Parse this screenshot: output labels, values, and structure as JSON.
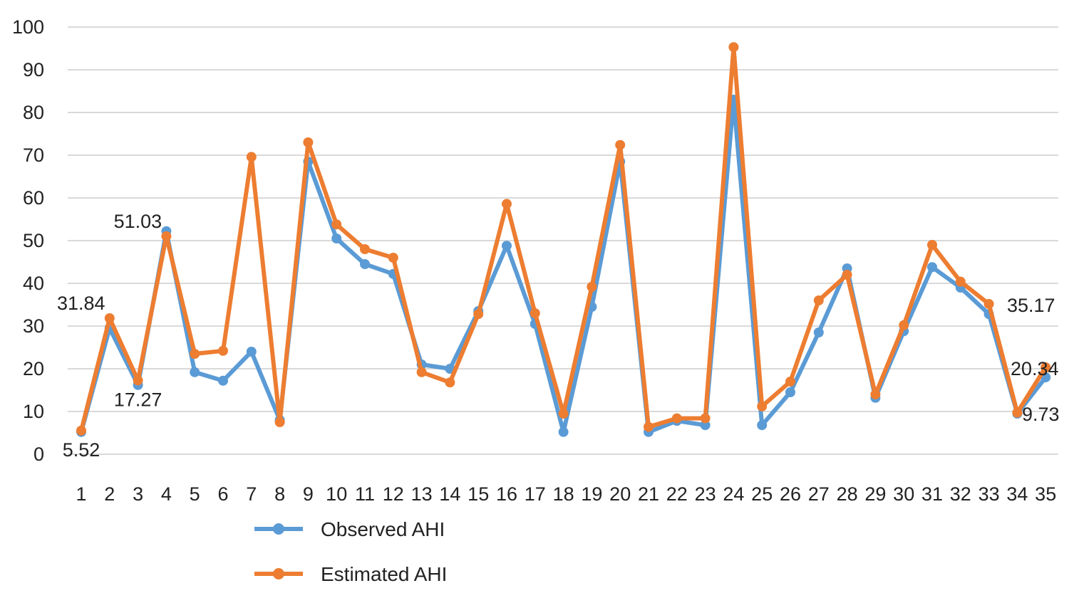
{
  "chart_data": {
    "type": "line",
    "categories": [
      "1",
      "2",
      "3",
      "4",
      "5",
      "6",
      "7",
      "8",
      "9",
      "10",
      "11",
      "12",
      "13",
      "14",
      "15",
      "16",
      "17",
      "18",
      "19",
      "20",
      "21",
      "22",
      "23",
      "24",
      "25",
      "26",
      "27",
      "28",
      "29",
      "30",
      "31",
      "32",
      "33",
      "34",
      "35"
    ],
    "series": [
      {
        "name": "Observed AHI",
        "color": "#5B9BD5",
        "values": [
          5.2,
          29.5,
          16.2,
          52.2,
          19.2,
          17.2,
          24.0,
          8.0,
          68.5,
          50.5,
          44.5,
          42.2,
          21.0,
          20.0,
          33.5,
          48.8,
          30.5,
          5.2,
          34.5,
          68.5,
          5.2,
          7.8,
          6.8,
          83.0,
          6.8,
          14.5,
          28.5,
          43.5,
          13.2,
          28.8,
          43.8,
          39.0,
          32.8,
          9.5,
          18.0
        ]
      },
      {
        "name": "Estimated AHI",
        "color": "#ED7D31",
        "values": [
          5.52,
          31.84,
          17.27,
          51.03,
          23.5,
          24.2,
          69.6,
          7.5,
          73.0,
          53.8,
          48.0,
          46.0,
          19.2,
          16.8,
          32.8,
          58.6,
          33.0,
          9.5,
          39.2,
          72.4,
          6.4,
          8.4,
          8.4,
          95.3,
          11.2,
          17.0,
          36.0,
          42.0,
          14.0,
          30.2,
          49.0,
          40.4,
          35.17,
          9.73,
          20.34
        ]
      }
    ],
    "data_labels": [
      {
        "index": 0,
        "text": "5.52",
        "position": "below"
      },
      {
        "index": 1,
        "text": "31.84",
        "position": "above-left"
      },
      {
        "index": 2,
        "text": "17.27",
        "position": "below"
      },
      {
        "index": 3,
        "text": "51.03",
        "position": "above-left"
      },
      {
        "index": 32,
        "text": "35.17",
        "position": "right"
      },
      {
        "index": 33,
        "text": "9.73",
        "position": "right"
      },
      {
        "index": 34,
        "text": "20.34",
        "position": "right"
      }
    ],
    "y_ticks": [
      "0",
      "10",
      "20",
      "30",
      "40",
      "50",
      "60",
      "70",
      "80",
      "90",
      "100"
    ],
    "ylim": [
      0,
      100
    ],
    "grid": true,
    "legend_position": "bottom-left",
    "title": "",
    "xlabel": "",
    "ylabel": ""
  }
}
